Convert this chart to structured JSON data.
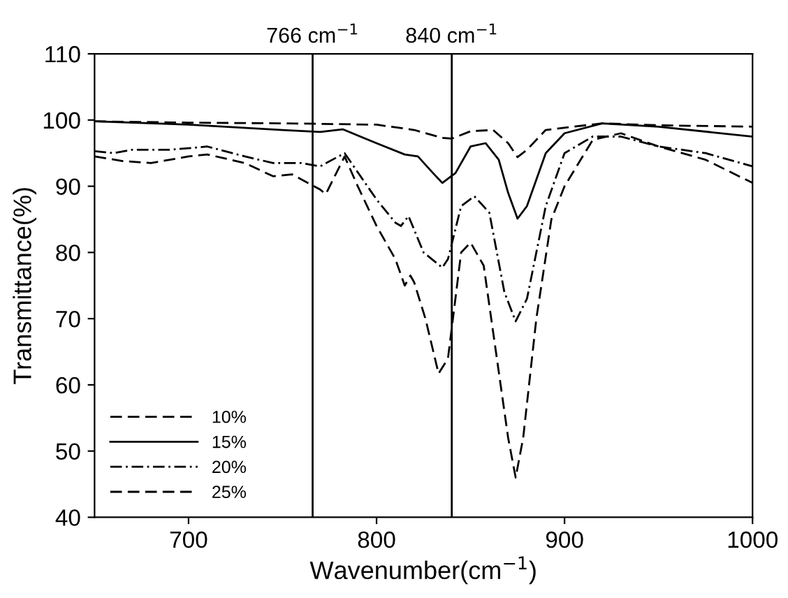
{
  "chart_data": {
    "type": "line",
    "xlabel": "Wavenumber(cm$^{−1}$)",
    "ylabel": "Transmittance(%)",
    "xlim": [
      650,
      1000
    ],
    "xticks": [
      700,
      800,
      900,
      1000
    ],
    "ylim": [
      40,
      110
    ],
    "yticks": [
      40,
      50,
      60,
      70,
      80,
      90,
      100,
      110
    ],
    "grid": false,
    "legend": "bottom left",
    "marker": "none",
    "ref_lines": [
      {
        "axis": "x",
        "value": 766,
        "label": "766 cm$^{−1}$",
        "color": "#000000",
        "line_style": "solid"
      },
      {
        "axis": "x",
        "value": 840,
        "label": "840 cm$^{−1}$",
        "color": "#000000",
        "line_style": "solid"
      }
    ],
    "series": [
      {
        "name": "10%",
        "color": "#000000",
        "line_style": "dashed",
        "x": [
          650,
          700,
          750,
          800,
          820,
          835,
          840,
          850,
          862,
          870,
          875,
          880,
          890,
          920,
          950,
          1000
        ],
        "values": [
          99.8,
          99.6,
          99.5,
          99.3,
          98.5,
          97.3,
          97.2,
          98.3,
          98.5,
          96.5,
          94.4,
          95.5,
          98.5,
          99.5,
          99.2,
          99
        ]
      },
      {
        "name": "15%",
        "color": "#000000",
        "line_style": "solid",
        "x": [
          650,
          700,
          750,
          770,
          782,
          800,
          815,
          822,
          830,
          835,
          842,
          850,
          858,
          865,
          870,
          875,
          880,
          890,
          900,
          920,
          950,
          1000
        ],
        "values": [
          99.8,
          99.3,
          98.5,
          98.2,
          98.6,
          96.5,
          94.8,
          94.5,
          92,
          90.5,
          92,
          96,
          96.5,
          94,
          89,
          85.1,
          87,
          95,
          98,
          99.5,
          99,
          97.5
        ]
      },
      {
        "name": "20%",
        "color": "#000000",
        "line_style": "dashdot",
        "x": [
          650,
          660,
          670,
          690,
          710,
          730,
          745,
          760,
          770,
          783,
          800,
          810,
          813,
          817,
          825,
          835,
          838,
          845,
          852,
          860,
          868,
          874,
          880,
          890,
          900,
          915,
          930,
          950,
          975,
          1000
        ],
        "values": [
          95.3,
          95,
          95.5,
          95.5,
          96,
          94.5,
          93.5,
          93.5,
          93,
          95,
          88,
          84.5,
          84,
          85.5,
          80,
          77.7,
          79,
          87,
          88.5,
          86,
          74,
          69.6,
          73,
          87,
          95,
          97.5,
          97.5,
          96,
          95,
          93
        ]
      },
      {
        "name": "25%",
        "color": "#000000",
        "line_style": "dashed",
        "x": [
          650,
          665,
          680,
          700,
          710,
          730,
          745,
          755,
          770,
          773,
          783,
          790,
          800,
          810,
          815,
          818,
          820,
          826,
          833,
          838,
          845,
          850,
          857,
          865,
          870,
          874,
          878,
          885,
          893,
          900,
          915,
          930,
          950,
          975,
          1000
        ],
        "values": [
          94.5,
          93.8,
          93.5,
          94.5,
          94.8,
          93.5,
          91.5,
          91.8,
          89.5,
          88.8,
          94.5,
          90,
          84,
          79,
          75,
          76.5,
          75.5,
          70,
          61.7,
          64,
          80,
          81.5,
          78,
          62,
          52,
          46,
          52,
          70,
          85,
          90,
          97,
          98,
          96,
          94,
          90.5
        ]
      }
    ]
  }
}
